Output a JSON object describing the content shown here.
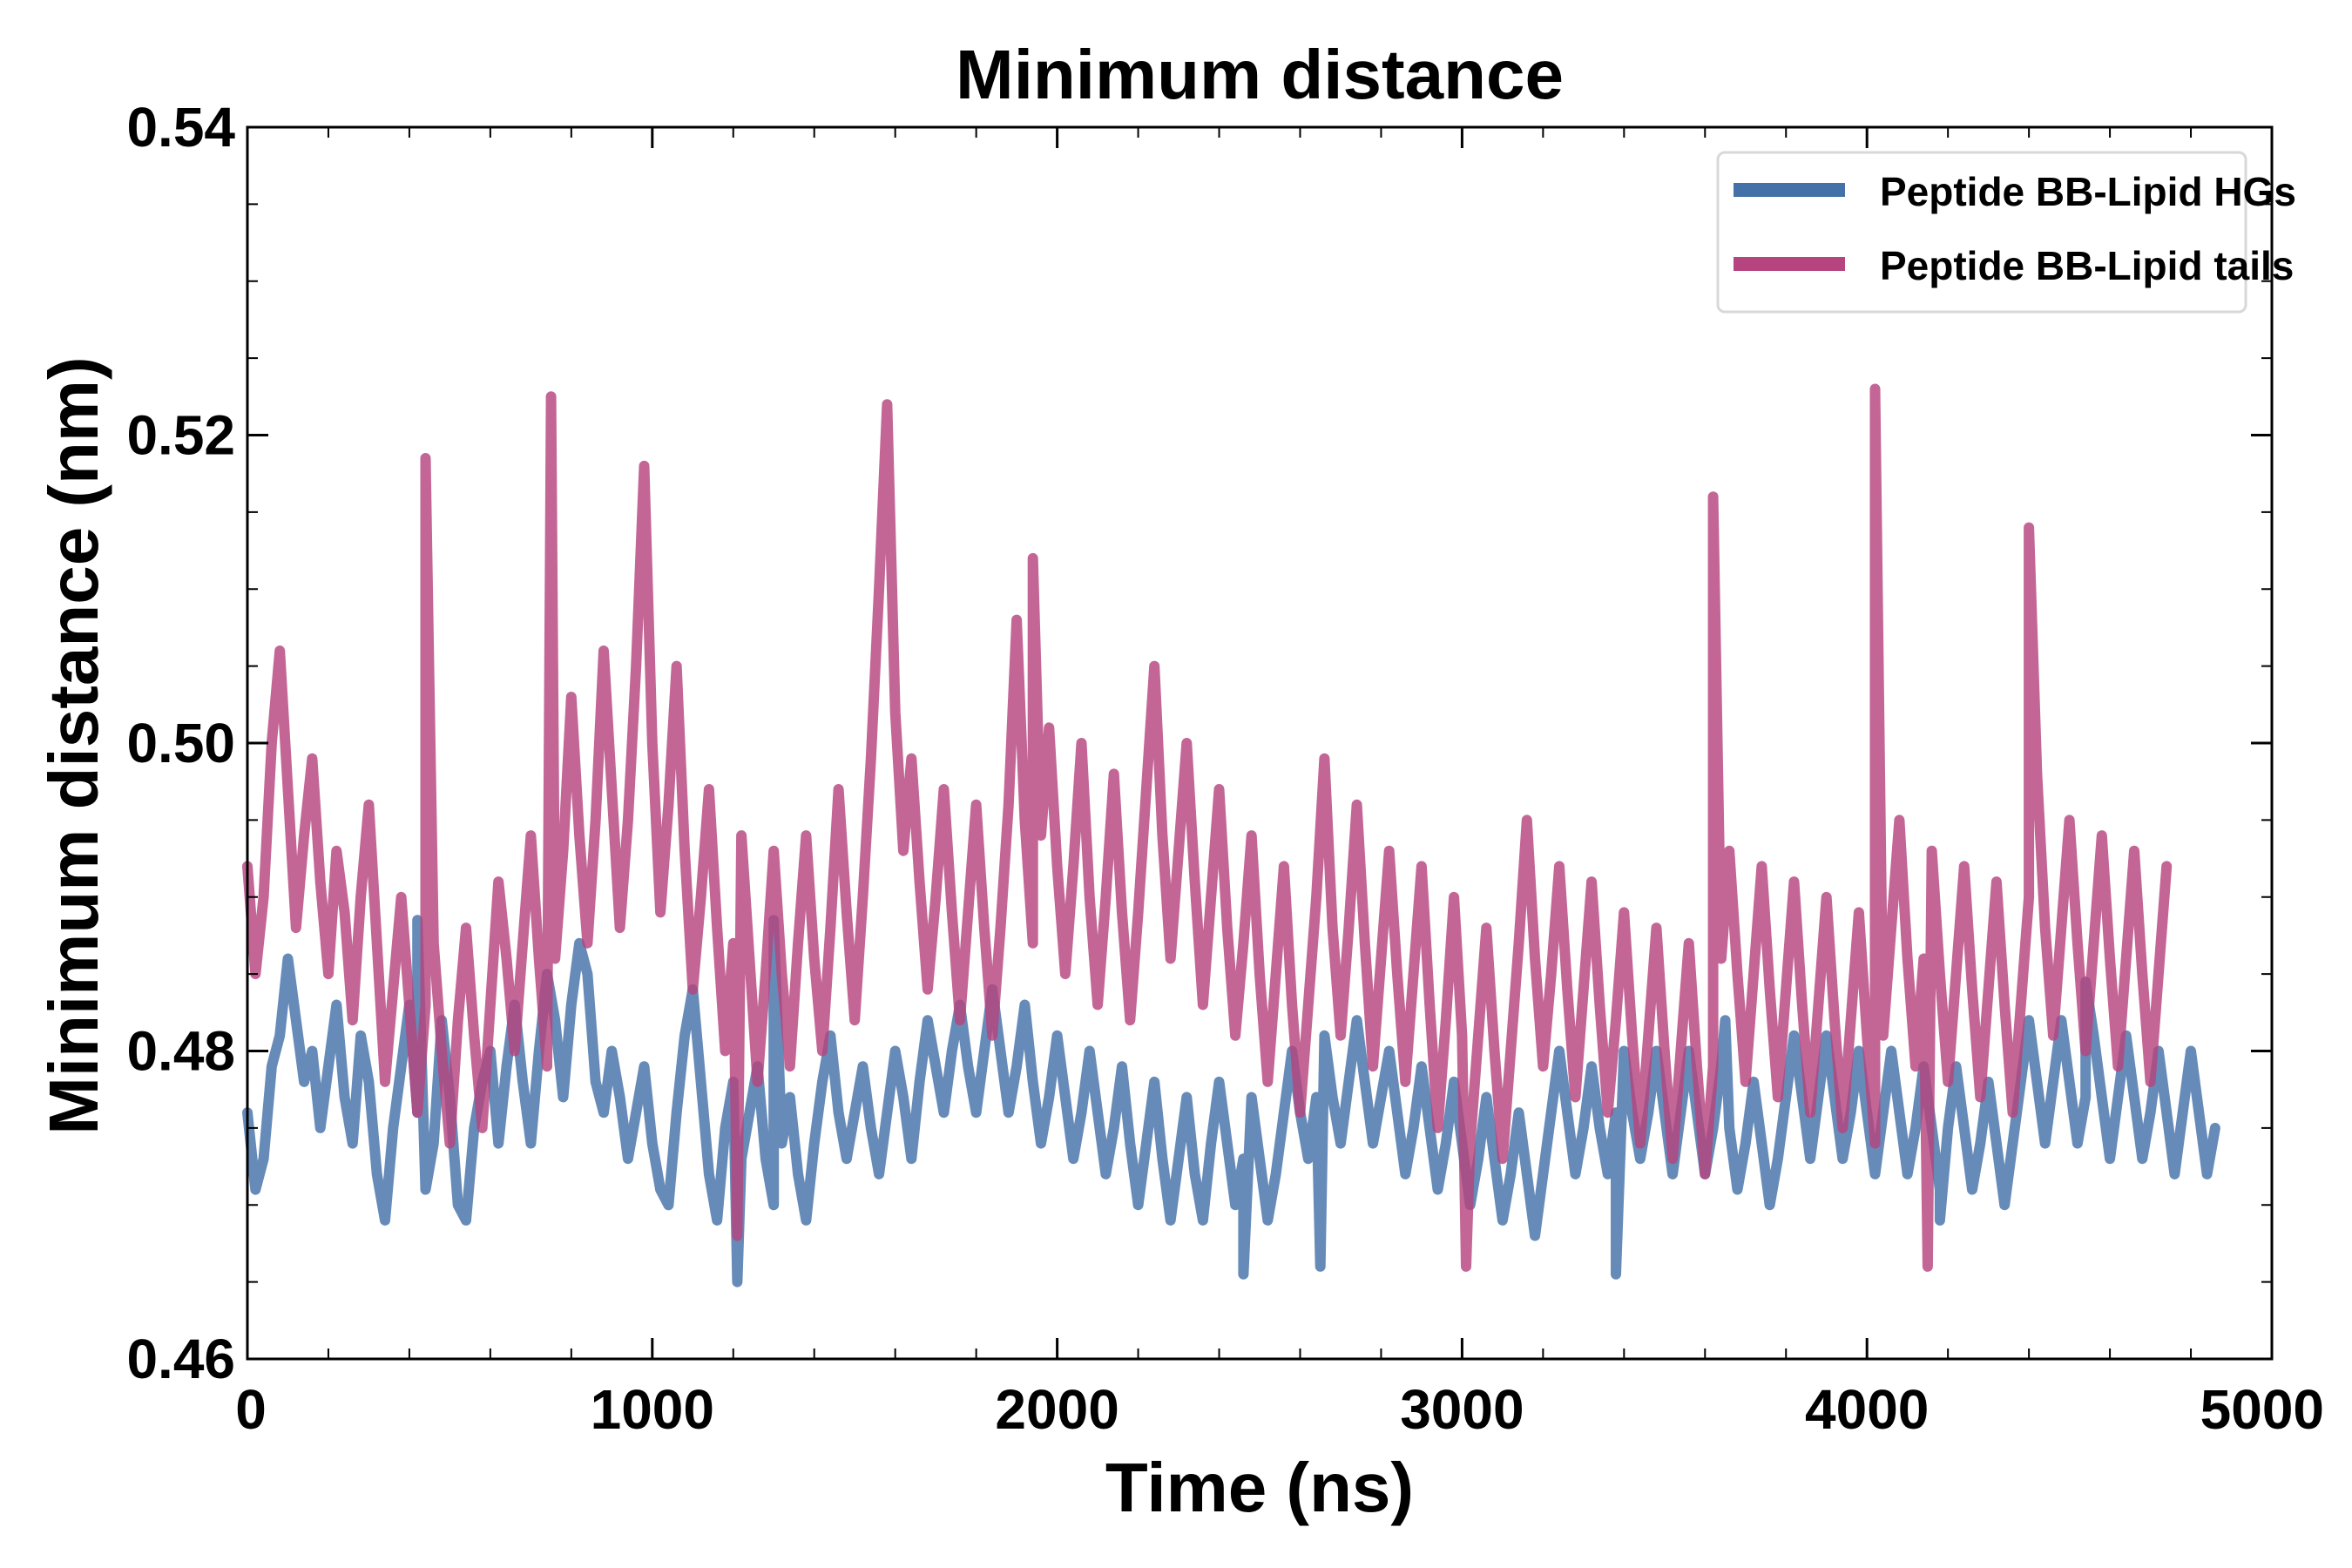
{
  "chart_data": {
    "type": "line",
    "title": "Minimum distance",
    "xlabel": "Time (ns)",
    "ylabel": "Minimum distance (nm)",
    "xlim": [
      0,
      5000
    ],
    "ylim": [
      0.46,
      0.54
    ],
    "xticks": [
      0,
      1000,
      2000,
      3000,
      4000,
      5000
    ],
    "xtick_labels": [
      "0",
      "1000",
      "2000",
      "3000",
      "4000",
      "5000"
    ],
    "yticks": [
      0.46,
      0.48,
      0.5,
      0.52,
      0.54
    ],
    "ytick_labels": [
      "0.46",
      "0.48",
      "0.50",
      "0.52",
      "0.54"
    ],
    "x_minor_step": 200,
    "y_minor_step": 0.005,
    "grid": false,
    "legend_position": "top-right",
    "series": [
      {
        "name": "Peptide BB-Lipid HGs",
        "color": "#4472a8",
        "x_start": 0,
        "x_step": 20,
        "values": [
          0.476,
          0.471,
          0.473,
          0.479,
          0.481,
          0.486,
          0.482,
          0.478,
          0.48,
          0.475,
          0.479,
          0.483,
          0.477,
          0.474,
          0.481,
          0.478,
          0.472,
          0.469,
          0.475,
          0.479,
          0.483,
          0.476,
          0.471,
          0.474,
          0.482,
          0.477,
          0.47,
          0.469,
          0.475,
          0.478,
          0.48,
          0.474,
          0.479,
          0.483,
          0.478,
          0.474,
          0.48,
          0.485,
          0.482,
          0.477,
          0.483,
          0.487,
          0.485,
          0.478,
          0.476,
          0.48,
          0.477,
          0.473,
          0.476,
          0.479,
          0.474,
          0.471,
          0.47,
          0.476,
          0.481,
          0.484,
          0.478,
          0.472,
          0.469,
          0.475,
          0.478,
          0.473,
          0.476,
          0.479,
          0.473,
          0.47,
          0.474,
          0.477,
          0.472,
          0.469,
          0.474,
          0.478,
          0.481,
          0.476,
          0.473,
          0.476,
          0.479,
          0.475,
          0.472,
          0.476,
          0.48,
          0.477,
          0.473,
          0.478,
          0.482,
          0.479,
          0.476,
          0.48,
          0.483,
          0.479,
          0.476,
          0.48,
          0.484,
          0.48,
          0.476,
          0.479,
          0.483,
          0.478,
          0.474,
          0.477,
          0.481,
          0.477,
          0.473,
          0.476,
          0.48,
          0.476,
          0.472,
          0.475,
          0.479,
          0.474,
          0.47,
          0.474,
          0.478,
          0.473,
          0.469,
          0.473,
          0.477,
          0.472,
          0.469,
          0.474,
          0.478,
          0.474,
          0.47,
          0.473,
          0.477,
          0.473,
          0.469,
          0.472,
          0.476,
          0.48,
          0.476,
          0.473,
          0.477,
          0.481,
          0.477,
          0.474,
          0.478,
          0.482,
          0.478,
          0.474,
          0.477,
          0.48,
          0.476,
          0.472,
          0.475,
          0.479,
          0.475,
          0.471,
          0.474,
          0.478,
          0.474,
          0.47,
          0.473,
          0.477,
          0.473,
          0.469,
          0.472,
          0.476,
          0.472,
          0.468,
          0.472,
          0.476,
          0.48,
          0.476,
          0.472,
          0.475,
          0.479,
          0.475,
          0.472,
          0.476,
          0.48,
          0.476,
          0.473,
          0.476,
          0.48,
          0.476,
          0.472,
          0.476,
          0.48,
          0.476,
          0.472,
          0.475,
          0.479,
          0.475,
          0.471,
          0.474,
          0.478,
          0.474,
          0.47,
          0.473,
          0.477,
          0.481,
          0.477,
          0.473,
          0.477,
          0.481,
          0.477,
          0.473,
          0.476,
          0.48,
          0.476,
          0.472,
          0.476,
          0.48,
          0.476,
          0.472,
          0.475,
          0.479,
          0.475,
          0.471,
          0.475,
          0.479,
          0.475,
          0.471,
          0.474,
          0.478,
          0.474,
          0.47,
          0.474,
          0.478,
          0.482,
          0.478,
          0.474,
          0.478,
          0.482,
          0.478,
          0.474,
          0.477,
          0.481,
          0.477,
          0.473,
          0.477,
          0.481,
          0.477,
          0.473,
          0.476,
          0.48,
          0.476,
          0.472,
          0.476,
          0.48,
          0.476,
          0.472,
          0.475
        ],
        "highlights": [
          [
            420,
            0.4885
          ],
          [
            1210,
            0.465
          ],
          [
            1300,
            0.4885
          ],
          [
            2460,
            0.4655
          ],
          [
            2650,
            0.466
          ],
          [
            3380,
            0.4655
          ],
          [
            3650,
            0.482
          ],
          [
            4180,
            0.469
          ],
          [
            4540,
            0.4845
          ]
        ]
      },
      {
        "name": "Peptide BB-Lipid tails",
        "color": "#b6447f",
        "x_start": 0,
        "x_step": 20,
        "values": [
          0.492,
          0.485,
          0.49,
          0.5,
          0.506,
          0.497,
          0.488,
          0.494,
          0.499,
          0.491,
          0.485,
          0.493,
          0.489,
          0.482,
          0.49,
          0.496,
          0.487,
          0.478,
          0.484,
          0.49,
          0.483,
          0.476,
          0.483,
          0.487,
          0.48,
          0.474,
          0.482,
          0.488,
          0.481,
          0.475,
          0.483,
          0.491,
          0.486,
          0.48,
          0.487,
          0.494,
          0.486,
          0.479,
          0.486,
          0.493,
          0.503,
          0.494,
          0.487,
          0.495,
          0.506,
          0.497,
          0.488,
          0.495,
          0.505,
          0.518,
          0.5,
          0.489,
          0.496,
          0.505,
          0.493,
          0.484,
          0.49,
          0.497,
          0.488,
          0.48,
          0.487,
          0.494,
          0.486,
          0.478,
          0.485,
          0.493,
          0.485,
          0.479,
          0.487,
          0.494,
          0.486,
          0.48,
          0.488,
          0.497,
          0.489,
          0.482,
          0.49,
          0.499,
          0.51,
          0.522,
          0.502,
          0.493,
          0.499,
          0.491,
          0.484,
          0.49,
          0.497,
          0.489,
          0.482,
          0.489,
          0.496,
          0.488,
          0.481,
          0.488,
          0.496,
          0.508,
          0.495,
          0.487,
          0.494,
          0.501,
          0.492,
          0.485,
          0.492,
          0.5,
          0.49,
          0.483,
          0.49,
          0.498,
          0.489,
          0.482,
          0.489,
          0.497,
          0.505,
          0.494,
          0.486,
          0.493,
          0.5,
          0.491,
          0.483,
          0.49,
          0.497,
          0.488,
          0.481,
          0.487,
          0.494,
          0.485,
          0.478,
          0.485,
          0.492,
          0.483,
          0.476,
          0.483,
          0.49,
          0.499,
          0.488,
          0.481,
          0.488,
          0.496,
          0.487,
          0.479,
          0.486,
          0.493,
          0.485,
          0.478,
          0.485,
          0.492,
          0.483,
          0.475,
          0.482,
          0.49,
          0.481,
          0.474,
          0.481,
          0.488,
          0.48,
          0.473,
          0.48,
          0.487,
          0.495,
          0.486,
          0.479,
          0.485,
          0.492,
          0.484,
          0.477,
          0.484,
          0.491,
          0.483,
          0.476,
          0.482,
          0.489,
          0.481,
          0.474,
          0.481,
          0.488,
          0.48,
          0.473,
          0.48,
          0.487,
          0.479,
          0.472,
          0.479,
          0.486,
          0.493,
          0.485,
          0.478,
          0.485,
          0.492,
          0.484,
          0.477,
          0.484,
          0.491,
          0.483,
          0.476,
          0.483,
          0.49,
          0.482,
          0.475,
          0.482,
          0.489,
          0.481,
          0.474,
          0.481,
          0.488,
          0.495,
          0.486,
          0.479,
          0.486,
          0.493,
          0.485,
          0.478,
          0.485,
          0.492,
          0.484,
          0.477,
          0.484,
          0.491,
          0.483,
          0.476,
          0.483,
          0.49,
          0.498,
          0.488,
          0.481,
          0.488,
          0.495,
          0.487,
          0.48,
          0.487,
          0.494,
          0.486,
          0.479,
          0.486,
          0.493,
          0.485,
          0.478,
          0.485,
          0.492
        ],
        "highlights": [
          [
            440,
            0.5185
          ],
          [
            750,
            0.5225
          ],
          [
            1210,
            0.468
          ],
          [
            1940,
            0.512
          ],
          [
            3010,
            0.466
          ],
          [
            3620,
            0.516
          ],
          [
            4020,
            0.523
          ],
          [
            4150,
            0.466
          ],
          [
            4400,
            0.514
          ]
        ]
      }
    ]
  }
}
